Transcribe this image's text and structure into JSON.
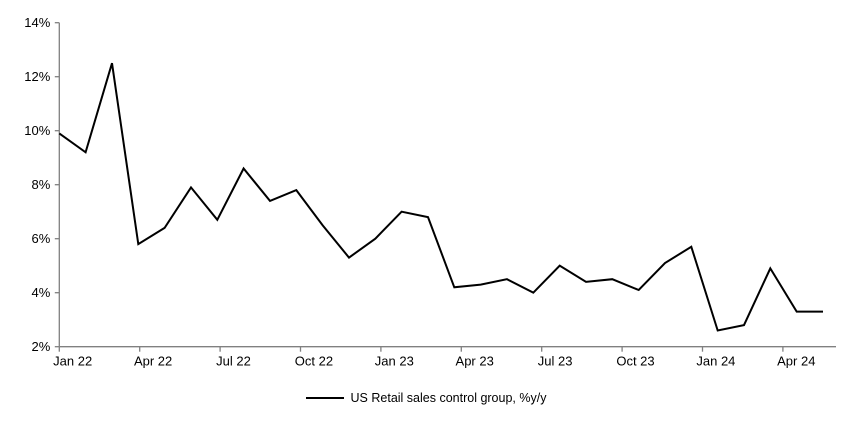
{
  "chart_data": {
    "type": "line",
    "title": "",
    "xlabel": "",
    "ylabel": "",
    "categories": [
      "Jan 22",
      "Feb 22",
      "Mar 22",
      "Apr 22",
      "May 22",
      "Jun 22",
      "Jul 22",
      "Aug 22",
      "Sep 22",
      "Oct 22",
      "Nov 22",
      "Dec 22",
      "Jan 23",
      "Feb 23",
      "Mar 23",
      "Apr 23",
      "May 23",
      "Jun 23",
      "Jul 23",
      "Aug 23",
      "Sep 23",
      "Oct 23",
      "Nov 23",
      "Dec 23",
      "Jan 24",
      "Feb 24",
      "Mar 24",
      "Apr 24",
      "May 24",
      "Jun 24"
    ],
    "series": [
      {
        "name": "US Retail sales control group, %y/y",
        "color": "#000000",
        "values": [
          9.9,
          9.2,
          12.5,
          5.8,
          6.4,
          7.9,
          6.7,
          8.6,
          7.4,
          7.8,
          6.5,
          5.3,
          6.0,
          7.0,
          6.8,
          4.2,
          4.3,
          4.5,
          4.0,
          5.0,
          4.4,
          4.5,
          4.1,
          5.1,
          5.7,
          2.6,
          2.8,
          4.9,
          3.3,
          3.3
        ]
      }
    ],
    "x_tick_labels": [
      "Jan 22",
      "Apr 22",
      "Jul 22",
      "Oct 22",
      "Jan 23",
      "Apr 23",
      "Jul 23",
      "Oct 23",
      "Jan 24",
      "Apr 24"
    ],
    "x_tick_every_months": 3,
    "y_tick_labels": [
      "2%",
      "4%",
      "6%",
      "8%",
      "10%",
      "12%",
      "14%"
    ],
    "y_tick_values": [
      2,
      4,
      6,
      8,
      10,
      12,
      14
    ],
    "ylim": [
      2,
      14
    ],
    "grid": false,
    "legend_position": "bottom",
    "axis_color": "#808080",
    "background_color": "#ffffff"
  }
}
